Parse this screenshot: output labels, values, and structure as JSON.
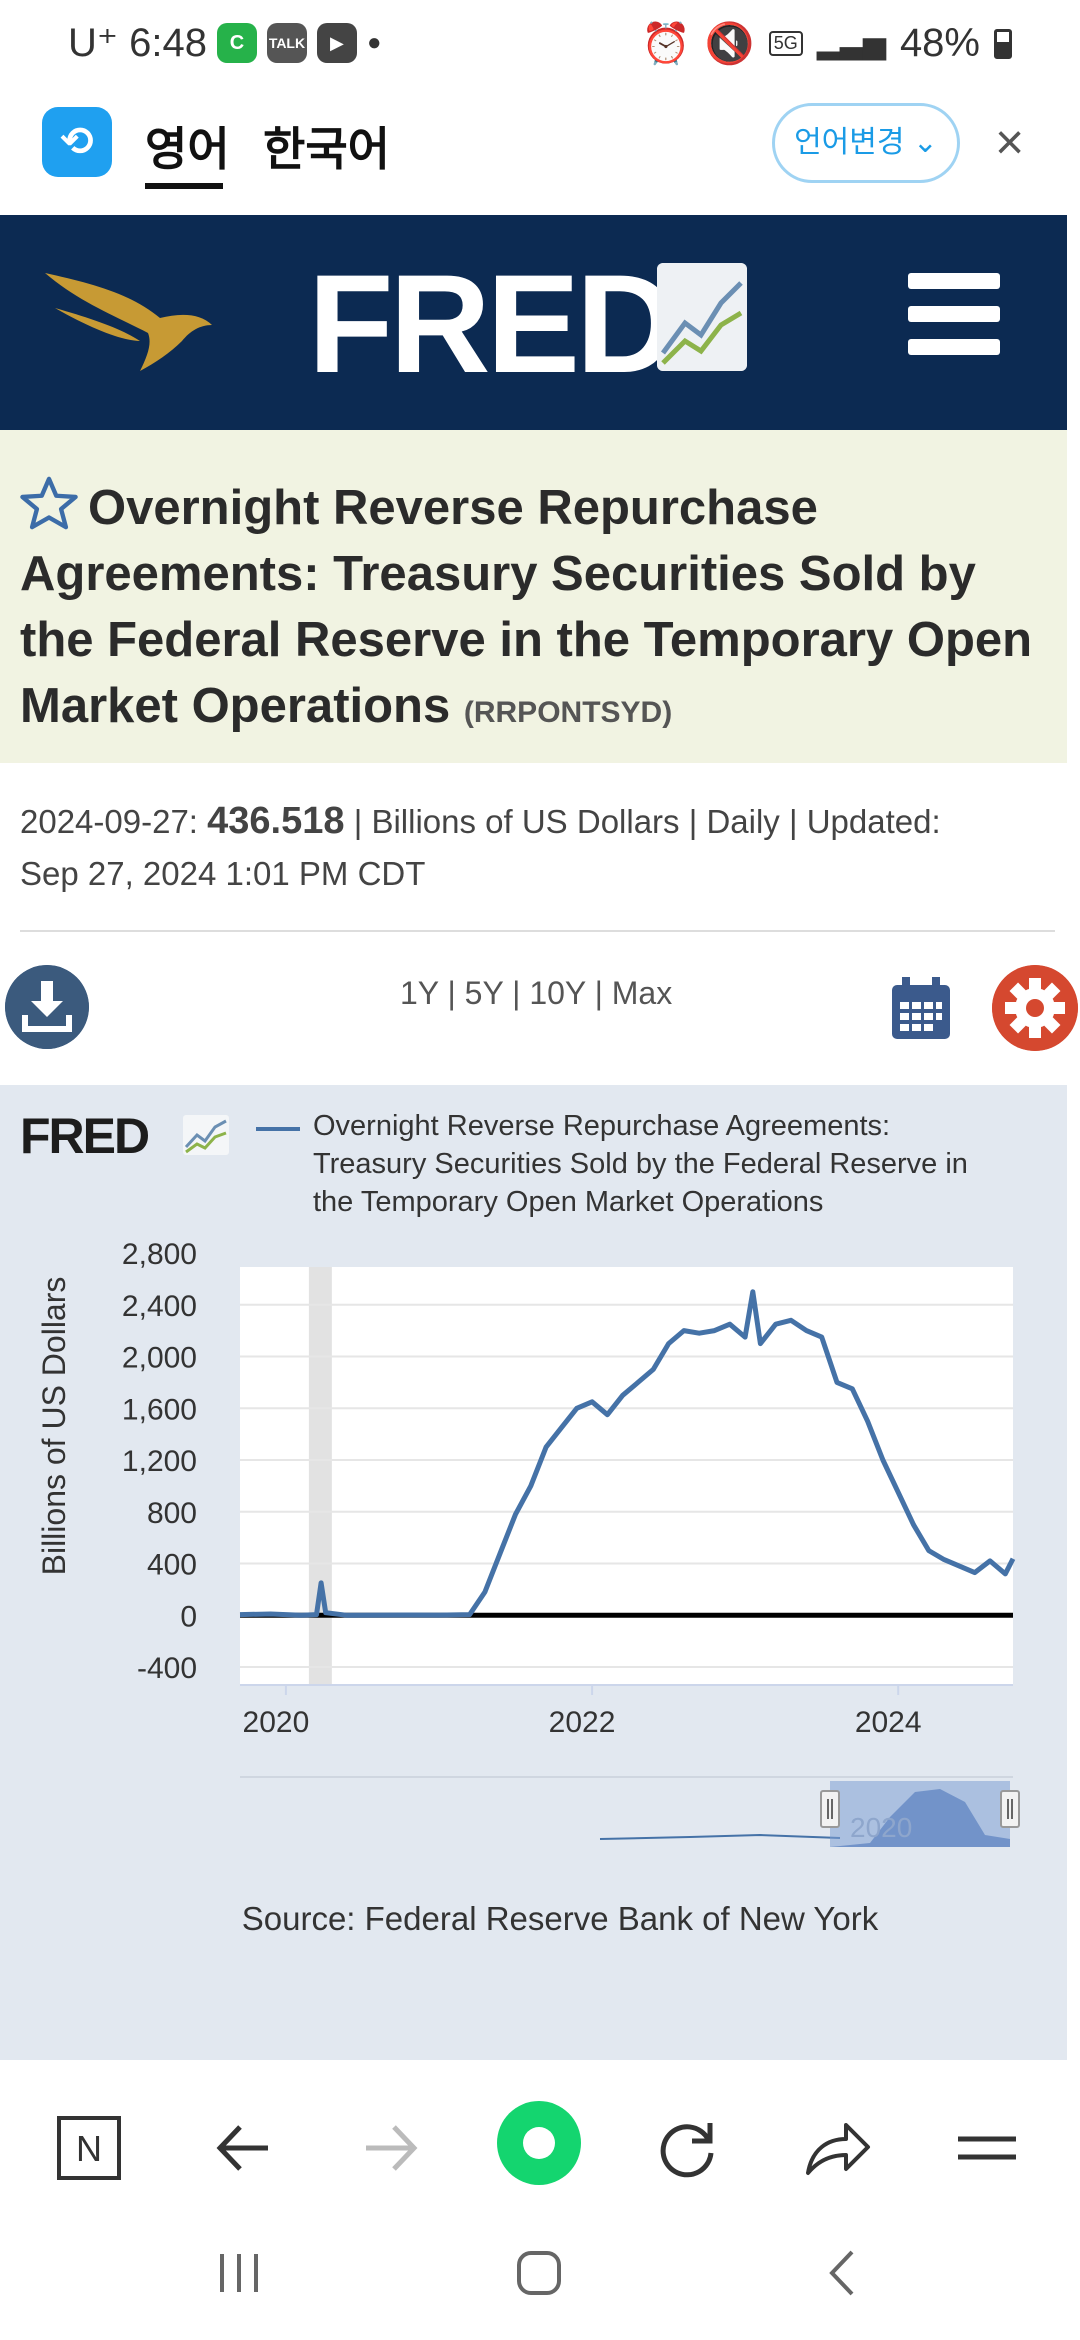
{
  "status_bar": {
    "carrier_time": "U⁺ 6:48",
    "apps": [
      "C",
      "TALK",
      "▶"
    ],
    "network": "5G",
    "battery": "48%"
  },
  "translate_bar": {
    "tab_english": "영어",
    "tab_korean": "한국어",
    "change_language": "언어변경 ⌄",
    "close": "×"
  },
  "header": {
    "wordmark": "FRED"
  },
  "series": {
    "title": "Overnight Reverse Repurchase Agreements: Treasury Securities Sold by the Federal Reserve in the Temporary Open Market Operations",
    "id": "(RRPONTSYD)",
    "obs_date": "2024-09-27:",
    "obs_value": "436.518",
    "meta": "| Billions of US Dollars | Daily | Updated:",
    "updated": "Sep 27, 2024 1:01 PM CDT"
  },
  "controls": {
    "ranges": "1Y | 5Y | 10Y | Max"
  },
  "chart_panel": {
    "logo": "FRED",
    "legend": "Overnight Reverse Repurchase Agreements: Treasury Securities Sold by the Federal Reserve in the Temporary Open Market Operations",
    "source": "Source: Federal Reserve Bank of New York"
  },
  "colors": {
    "header_bg": "#0c2a52",
    "title_bg": "#f1f3e2",
    "chart_bg": "#e2e8f0",
    "series_line": "#4572a7",
    "gear_red": "#d5482f"
  },
  "chart_data": {
    "type": "line",
    "title": "",
    "xlabel": "",
    "ylabel": "Billions of US Dollars",
    "ylim": [
      -400,
      2800
    ],
    "yticks": [
      -400,
      0,
      400,
      800,
      1200,
      1600,
      2000,
      2400,
      2800
    ],
    "ytick_labels": [
      "-400",
      "0",
      "400",
      "800",
      "1,200",
      "1,600",
      "2,000",
      "2,400",
      "2,800"
    ],
    "xlim": [
      2019.7,
      2024.75
    ],
    "xticks": [
      2020,
      2022,
      2024
    ],
    "xtick_labels": [
      "2020",
      "2022",
      "2024"
    ],
    "recession_band": [
      2020.15,
      2020.3
    ],
    "navigator_label": "2020",
    "series": [
      {
        "name": "RRPONTSYD",
        "x": [
          2019.7,
          2019.9,
          2020.1,
          2020.2,
          2020.23,
          2020.26,
          2020.4,
          2020.8,
          2021.0,
          2021.2,
          2021.3,
          2021.4,
          2021.5,
          2021.6,
          2021.7,
          2021.8,
          2021.9,
          2022.0,
          2022.1,
          2022.2,
          2022.3,
          2022.4,
          2022.5,
          2022.6,
          2022.7,
          2022.8,
          2022.9,
          2023.0,
          2023.05,
          2023.1,
          2023.2,
          2023.3,
          2023.4,
          2023.5,
          2023.6,
          2023.7,
          2023.8,
          2023.9,
          2024.0,
          2024.1,
          2024.2,
          2024.3,
          2024.4,
          2024.5,
          2024.6,
          2024.7,
          2024.75
        ],
        "y": [
          5,
          10,
          0,
          5,
          250,
          20,
          0,
          2,
          1,
          5,
          180,
          480,
          780,
          1000,
          1300,
          1450,
          1600,
          1650,
          1550,
          1700,
          1800,
          1900,
          2100,
          2200,
          2180,
          2200,
          2250,
          2150,
          2500,
          2100,
          2250,
          2280,
          2200,
          2150,
          1800,
          1750,
          1500,
          1200,
          950,
          700,
          500,
          430,
          380,
          330,
          420,
          320,
          436.518
        ]
      }
    ]
  }
}
